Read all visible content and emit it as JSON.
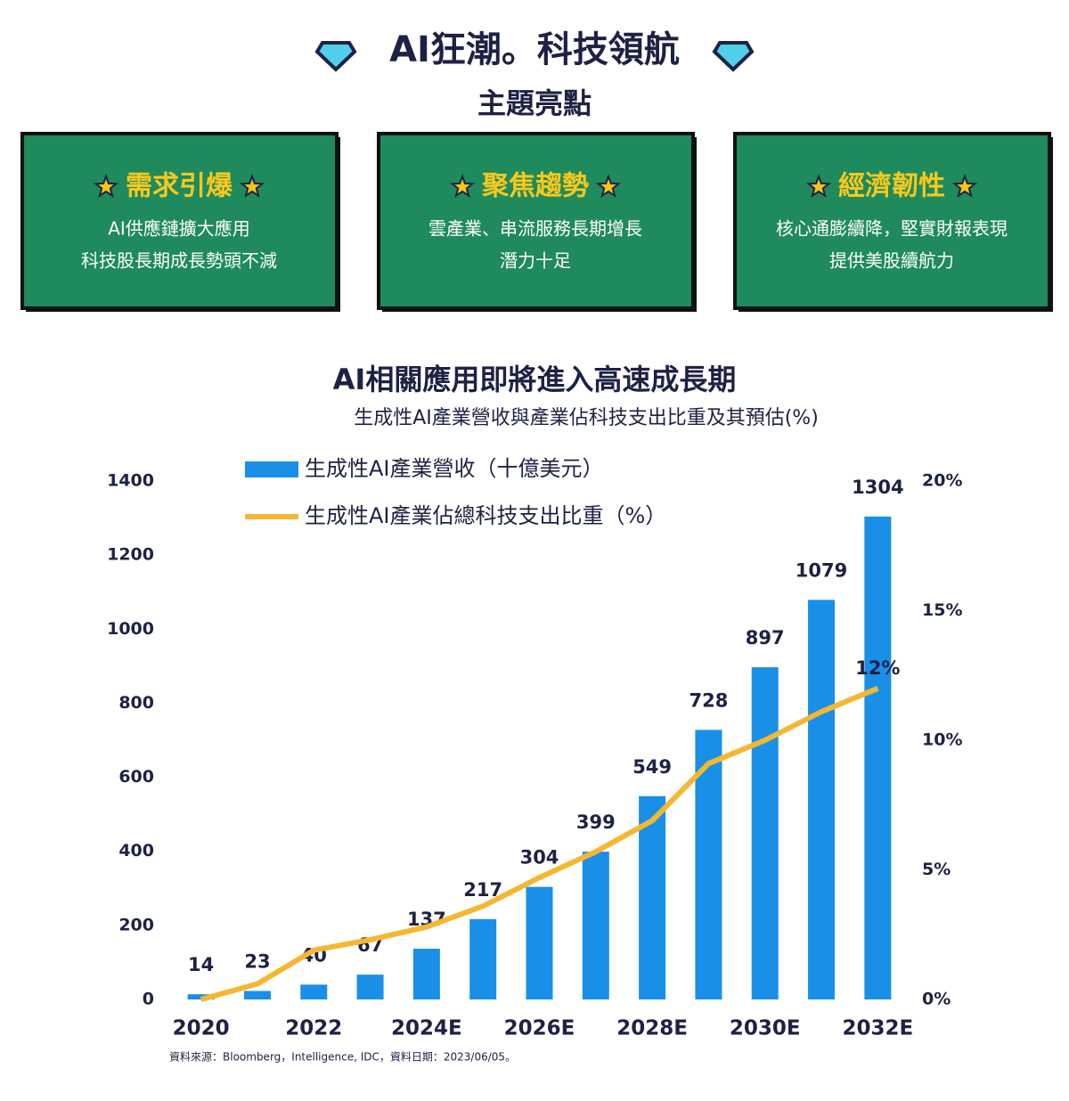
{
  "header": {
    "title": "AI狂潮。科技領航",
    "subtitle": "主題亮點"
  },
  "cards": [
    {
      "title": "需求引爆",
      "lines": [
        "AI供應鏈擴大應用",
        "科技股長期成長勢頭不減"
      ]
    },
    {
      "title": "聚焦趨勢",
      "lines": [
        "雲產業、串流服務長期增長",
        "潛力十足"
      ]
    },
    {
      "title": "經濟韌性",
      "lines": [
        "核心通膨續降，堅實財報表現",
        "提供美股續航力"
      ]
    }
  ],
  "chart_data": {
    "type": "bar",
    "title": "AI相關應用即將進入高速成長期",
    "subtitle": "生成性AI產業營收與產業佔科技支出比重及其預估(%)",
    "categories": [
      "2020",
      null,
      "2022",
      null,
      "2024E",
      null,
      "2026E",
      null,
      "2028E",
      null,
      "2030E",
      null,
      "2032E"
    ],
    "series": [
      {
        "name": "生成性AI產業營收（十億美元）",
        "type": "bar",
        "color": "#1a8fe8",
        "values": [
          14,
          23,
          40,
          67,
          137,
          217,
          304,
          399,
          549,
          728,
          897,
          1079,
          1304
        ]
      },
      {
        "name": "生成性AI產業佔總科技支出比重（%）",
        "type": "line",
        "axis": "y2",
        "color": "#f5b731",
        "values": [
          0,
          0.6,
          1.9,
          2.3,
          2.8,
          3.6,
          4.7,
          5.7,
          6.9,
          9.1,
          10,
          11.1,
          12
        ],
        "value_labels": [
          null,
          null,
          null,
          null,
          null,
          null,
          null,
          null,
          null,
          null,
          null,
          null,
          "12%"
        ]
      }
    ],
    "ylim": [
      0,
      1400
    ],
    "yticks": [
      0,
      200,
      400,
      600,
      800,
      1000,
      1200,
      1400
    ],
    "y2lim": [
      0,
      20
    ],
    "y2ticks": [
      {
        "value": 0,
        "label": "0%"
      },
      {
        "value": 5,
        "label": "5%"
      },
      {
        "value": 10,
        "label": "10%"
      },
      {
        "value": 15,
        "label": "15%"
      },
      {
        "value": 20,
        "label": "20%"
      }
    ],
    "legend": "top-left",
    "source": "資料來源：Bloomberg，Intelligence, IDC，資料日期：2023/06/05。"
  }
}
